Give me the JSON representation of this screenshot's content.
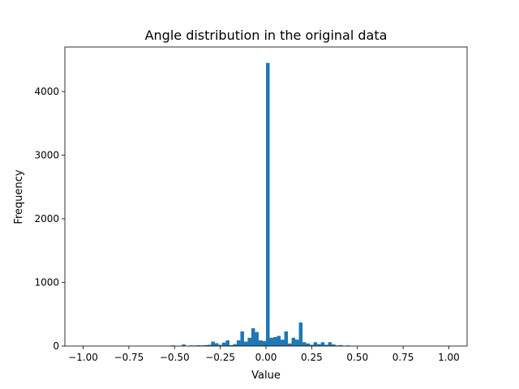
{
  "chart_data": {
    "type": "bar",
    "title": "Angle distribution in the original data",
    "xlabel": "Value",
    "ylabel": "Frequency",
    "xlim": [
      -1.1,
      1.1
    ],
    "ylim": [
      0,
      4700
    ],
    "xticks": [
      -1.0,
      -0.75,
      -0.5,
      -0.25,
      0.0,
      0.25,
      0.5,
      0.75,
      1.0
    ],
    "xtick_labels": [
      "−1.00",
      "−0.75",
      "−0.50",
      "−0.25",
      "0.00",
      "0.25",
      "0.50",
      "0.75",
      "1.00"
    ],
    "yticks": [
      0,
      1000,
      2000,
      3000,
      4000
    ],
    "ytick_labels": [
      "0",
      "1000",
      "2000",
      "3000",
      "4000"
    ],
    "grid": false,
    "bar_color": "#1f77b4",
    "bin_width": 0.02,
    "bins": [
      {
        "x0": -0.52,
        "count": 10
      },
      {
        "x0": -0.46,
        "count": 25
      },
      {
        "x0": -0.42,
        "count": 10
      },
      {
        "x0": -0.4,
        "count": 8
      },
      {
        "x0": -0.38,
        "count": 12
      },
      {
        "x0": -0.36,
        "count": 10
      },
      {
        "x0": -0.34,
        "count": 15
      },
      {
        "x0": -0.32,
        "count": 20
      },
      {
        "x0": -0.3,
        "count": 70
      },
      {
        "x0": -0.28,
        "count": 45
      },
      {
        "x0": -0.26,
        "count": 20
      },
      {
        "x0": -0.24,
        "count": 55
      },
      {
        "x0": -0.22,
        "count": 90
      },
      {
        "x0": -0.2,
        "count": 15
      },
      {
        "x0": -0.18,
        "count": 30
      },
      {
        "x0": -0.16,
        "count": 90
      },
      {
        "x0": -0.14,
        "count": 230
      },
      {
        "x0": -0.12,
        "count": 70
      },
      {
        "x0": -0.1,
        "count": 130
      },
      {
        "x0": -0.08,
        "count": 280
      },
      {
        "x0": -0.06,
        "count": 220
      },
      {
        "x0": -0.04,
        "count": 90
      },
      {
        "x0": -0.02,
        "count": 80
      },
      {
        "x0": 0.0,
        "count": 4450
      },
      {
        "x0": 0.02,
        "count": 130
      },
      {
        "x0": 0.04,
        "count": 140
      },
      {
        "x0": 0.06,
        "count": 160
      },
      {
        "x0": 0.08,
        "count": 100
      },
      {
        "x0": 0.1,
        "count": 230
      },
      {
        "x0": 0.12,
        "count": 40
      },
      {
        "x0": 0.14,
        "count": 130
      },
      {
        "x0": 0.16,
        "count": 100
      },
      {
        "x0": 0.18,
        "count": 370
      },
      {
        "x0": 0.2,
        "count": 60
      },
      {
        "x0": 0.22,
        "count": 40
      },
      {
        "x0": 0.24,
        "count": 20
      },
      {
        "x0": 0.26,
        "count": 60
      },
      {
        "x0": 0.28,
        "count": 30
      },
      {
        "x0": 0.3,
        "count": 60
      },
      {
        "x0": 0.32,
        "count": 20
      },
      {
        "x0": 0.34,
        "count": 60
      },
      {
        "x0": 0.36,
        "count": 25
      },
      {
        "x0": 0.38,
        "count": 10
      },
      {
        "x0": 0.4,
        "count": 15
      },
      {
        "x0": 0.44,
        "count": 10
      }
    ]
  }
}
